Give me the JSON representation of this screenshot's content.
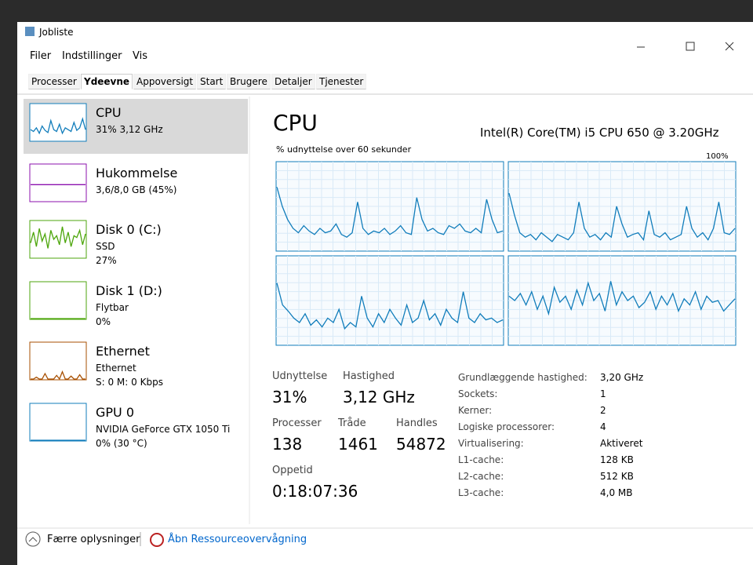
{
  "window": {
    "title": "Jobliste"
  },
  "menu": [
    "Filer",
    "Indstillinger",
    "Vis"
  ],
  "tabs": [
    "Processer",
    "Ydeevne",
    "Appoversigt",
    "Start",
    "Brugere",
    "Detaljer",
    "Tjenester"
  ],
  "sidebar": [
    {
      "name": "CPU",
      "lines": [
        "31% 3,12 GHz"
      ],
      "color": "#117dbb",
      "graph": [
        30,
        25,
        35,
        20,
        40,
        28,
        22,
        55,
        30,
        25,
        45,
        20,
        35,
        30,
        25,
        50,
        28,
        35,
        60,
        30
      ]
    },
    {
      "name": "Hukommelse",
      "lines": [
        "3,6/8,0 GB (45%)"
      ],
      "color": "#8b12ae",
      "graph": [
        45,
        45,
        45,
        45,
        45,
        45,
        45,
        45,
        45,
        45,
        45,
        45,
        45,
        45,
        45,
        45,
        45,
        45,
        45,
        45
      ]
    },
    {
      "name": "Disk 0 (C:)",
      "lines": [
        "SSD",
        "27%"
      ],
      "color": "#4da60c",
      "graph": [
        40,
        70,
        30,
        80,
        45,
        65,
        25,
        75,
        50,
        60,
        35,
        85,
        40,
        70,
        30,
        60,
        55,
        75,
        35,
        65
      ]
    },
    {
      "name": "Disk 1 (D:)",
      "lines": [
        "Flytbar",
        "0%"
      ],
      "color": "#4da60c",
      "graph": [
        0,
        0,
        0,
        0,
        0,
        0,
        0,
        0,
        0,
        0,
        0,
        0,
        0,
        0,
        0,
        0,
        0,
        0,
        0,
        0
      ]
    },
    {
      "name": "Ethernet",
      "lines": [
        "Ethernet",
        "S: 0 M: 0 Kbps"
      ],
      "color": "#a74f01",
      "graph": [
        0,
        0,
        5,
        0,
        0,
        15,
        0,
        0,
        0,
        10,
        0,
        20,
        0,
        0,
        8,
        0,
        0,
        12,
        0,
        0
      ]
    },
    {
      "name": "GPU 0",
      "lines": [
        "NVIDIA GeForce GTX 1050 Ti",
        "0% (30 °C)"
      ],
      "color": "#117dbb",
      "graph": [
        0,
        0,
        0,
        0,
        0,
        0,
        0,
        0,
        0,
        0,
        0,
        0,
        0,
        0,
        0,
        0,
        0,
        0,
        0,
        0
      ]
    }
  ],
  "main": {
    "title": "CPU",
    "model": "Intel(R) Core(TM) i5 CPU 650 @ 3.20GHz",
    "graph_label": "% udnyttelse over 60 sekunder",
    "graph_max": "100%",
    "ylim": [
      0,
      100
    ],
    "cores": [
      [
        72,
        50,
        35,
        25,
        20,
        28,
        22,
        18,
        25,
        20,
        22,
        30,
        18,
        15,
        20,
        55,
        25,
        18,
        22,
        20,
        25,
        18,
        22,
        28,
        20,
        18,
        60,
        35,
        22,
        25,
        20,
        18,
        28,
        25,
        30,
        22,
        20,
        25,
        20,
        58,
        35,
        20,
        22
      ],
      [
        65,
        40,
        20,
        15,
        18,
        12,
        20,
        15,
        10,
        18,
        15,
        12,
        20,
        55,
        25,
        15,
        18,
        12,
        20,
        15,
        50,
        30,
        15,
        18,
        20,
        12,
        45,
        18,
        15,
        20,
        12,
        15,
        18,
        50,
        25,
        15,
        20,
        12,
        25,
        55,
        20,
        18,
        25
      ],
      [
        70,
        45,
        38,
        30,
        25,
        35,
        22,
        28,
        20,
        30,
        25,
        40,
        18,
        25,
        20,
        55,
        30,
        20,
        35,
        25,
        40,
        30,
        22,
        45,
        25,
        30,
        50,
        28,
        35,
        22,
        40,
        30,
        25,
        60,
        30,
        25,
        35,
        28,
        30,
        25,
        28
      ],
      [
        55,
        50,
        58,
        45,
        60,
        40,
        55,
        35,
        65,
        48,
        55,
        40,
        62,
        45,
        70,
        50,
        58,
        38,
        72,
        45,
        60,
        50,
        55,
        42,
        48,
        60,
        40,
        55,
        45,
        58,
        38,
        52,
        45,
        60,
        40,
        55,
        48,
        50,
        38,
        45,
        52
      ]
    ]
  },
  "stats": [
    {
      "label": "Udnyttelse",
      "value": "31%"
    },
    {
      "label": "Hastighed",
      "value": "3,12 GHz"
    },
    {
      "label": "Processer",
      "value": "138"
    },
    {
      "label": "Tråde",
      "value": "1461"
    },
    {
      "label": "Handles",
      "value": "54872"
    },
    {
      "label": "Oppetid",
      "value": "0:18:07:36"
    }
  ],
  "details": [
    [
      "Grundlæggende hastighed:",
      "3,20 GHz"
    ],
    [
      "Sockets:",
      "1"
    ],
    [
      "Kerner:",
      "2"
    ],
    [
      "Logiske processorer:",
      "4"
    ],
    [
      "Virtualisering:",
      "Aktiveret"
    ],
    [
      "L1-cache:",
      "128 KB"
    ],
    [
      "L2-cache:",
      "512 KB"
    ],
    [
      "L3-cache:",
      "4,0 MB"
    ]
  ],
  "footer": {
    "less": "Færre oplysninger",
    "monitor": "Åbn Ressourceovervågning"
  }
}
